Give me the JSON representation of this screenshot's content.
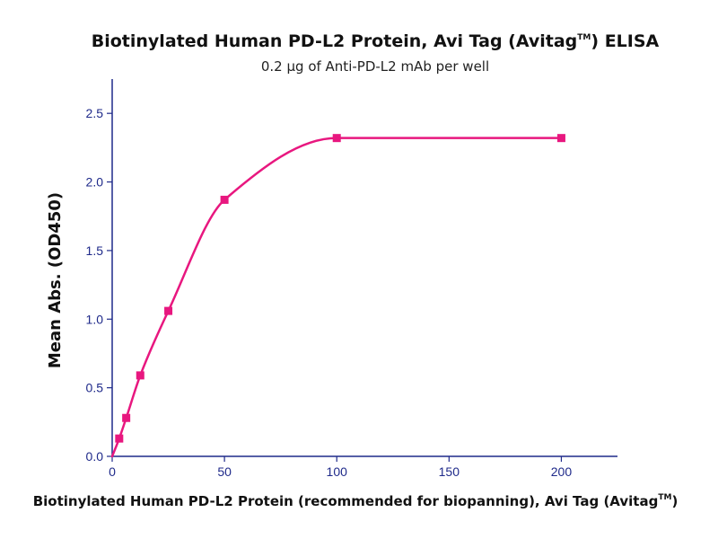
{
  "chart_data": {
    "type": "scatter",
    "title": "Biotinylated Human PD-L2 Protein, Avi Tag (Avitag",
    "title_superscript": "TM",
    "title_suffix": ") ELISA",
    "subtitle": "0.2 μg of Anti-PD-L2 mAb per well",
    "xlabel": "Biotinylated Human PD-L2 Protein (recommended for biopanning), Avi Tag (Avitag",
    "xlabel_superscript": "TM",
    "xlabel_suffix": ")",
    "ylabel": "Mean Abs. (OD450)",
    "xlim": [
      0,
      225
    ],
    "ylim": [
      0,
      2.75
    ],
    "x_ticks": [
      "0",
      "50",
      "100",
      "150",
      "200"
    ],
    "y_ticks": [
      "0.0",
      "0.5",
      "1.0",
      "1.5",
      "2.0",
      "2.5"
    ],
    "series": [
      {
        "points": [
          {
            "x": 3.125,
            "y": 0.13
          },
          {
            "x": 6.25,
            "y": 0.28
          },
          {
            "x": 12.5,
            "y": 0.59
          },
          {
            "x": 25,
            "y": 1.06
          },
          {
            "x": 50,
            "y": 1.87
          },
          {
            "x": 100,
            "y": 2.32
          },
          {
            "x": 200,
            "y": 2.32
          }
        ],
        "fit_curve": true
      }
    ],
    "grid": false,
    "colors": {
      "series": "#e8177f",
      "axis": "#1f2a8a",
      "text": "#111111"
    }
  }
}
